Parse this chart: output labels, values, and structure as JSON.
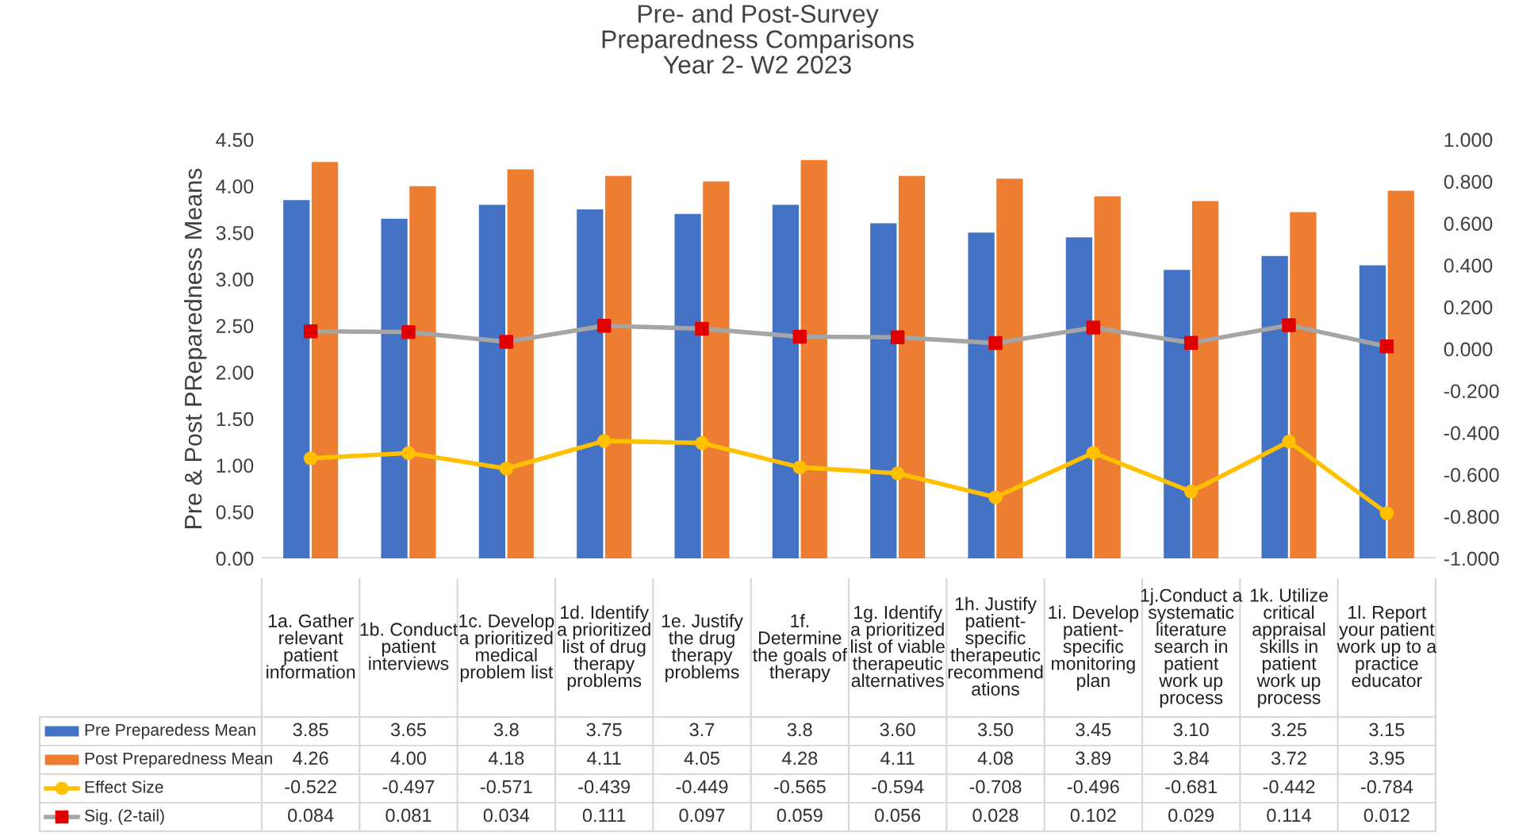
{
  "chart_data": {
    "type": "bar",
    "title": "Pre- and Post-Survey\nPreparedness Comparisons\nYear 2- W2 2023",
    "ylabel": "Pre & Post PReparedness Means",
    "categories": [
      "1a. Gather\nrelevant\npatient\ninformation",
      "1b. Conduct\npatient\ninterviews",
      "1c. Develop\na prioritized\nmedical\nproblem list",
      "1d. Identify\na prioritized\nlist of drug\ntherapy\nproblems",
      "1e. Justify\nthe drug\ntherapy\nproblems",
      "1f.\nDetermine\nthe goals of\ntherapy",
      "1g. Identify\na prioritized\nlist of viable\ntherapeutic\nalternatives",
      "1h. Justify\npatient-\nspecific\ntherapeutic\nrecommend\nations",
      "1i. Develop\npatient-\nspecific\nmonitoring\nplan",
      "1j.Conduct a\nsystematic\nliterature\nsearch in\npatient\nwork up\nprocess",
      "1k. Utilize\ncritical\nappraisal\nskills in\npatient\nwork up\nprocess",
      "1l. Report\nyour patient\nwork up to a\npractice\neducator"
    ],
    "series": [
      {
        "name": "Pre Preparedess Mean",
        "color": "#4472c4",
        "values": [
          3.85,
          3.65,
          3.8,
          3.75,
          3.7,
          3.8,
          3.6,
          3.5,
          3.45,
          3.1,
          3.25,
          3.15
        ],
        "value_labels": [
          "3.85",
          "3.65",
          "3.8",
          "3.75",
          "3.7",
          "3.8",
          "3.60",
          "3.50",
          "3.45",
          "3.10",
          "3.25",
          "3.15"
        ]
      },
      {
        "name": "Post Preparedness Mean",
        "color": "#ed7d31",
        "values": [
          4.26,
          4.0,
          4.18,
          4.11,
          4.05,
          4.28,
          4.11,
          4.08,
          3.89,
          3.84,
          3.72,
          3.95
        ],
        "value_labels": [
          "4.26",
          "4.00",
          "4.18",
          "4.11",
          "4.05",
          "4.28",
          "4.11",
          "4.08",
          "3.89",
          "3.84",
          "3.72",
          "3.95"
        ]
      },
      {
        "name": "Effect Size",
        "color": "#ffc000",
        "type": "line",
        "axis": "y2",
        "marker": "circle",
        "values": [
          -0.522,
          -0.497,
          -0.571,
          -0.439,
          -0.449,
          -0.565,
          -0.594,
          -0.708,
          -0.496,
          -0.681,
          -0.442,
          -0.784
        ],
        "value_labels": [
          "-0.522",
          "-0.497",
          "-0.571",
          "-0.439",
          "-0.449",
          "-0.565",
          "-0.594",
          "-0.708",
          "-0.496",
          "-0.681",
          "-0.442",
          "-0.784"
        ]
      },
      {
        "name": "Sig. (2-tail)",
        "color": "#a5a5a5",
        "type": "line",
        "axis": "y2",
        "marker": "square",
        "colors": [
          "#e00000",
          "#e00000",
          "#e00000",
          "#e00000",
          "#e00000",
          "#e00000",
          "#e00000",
          "#e00000",
          "#e00000",
          "#e00000",
          "#e00000",
          "#e00000"
        ],
        "values": [
          0.084,
          0.081,
          0.034,
          0.111,
          0.097,
          0.059,
          0.056,
          0.028,
          0.102,
          0.029,
          0.114,
          0.012
        ],
        "value_labels": [
          "0.084",
          "0.081",
          "0.034",
          "0.111",
          "0.097",
          "0.059",
          "0.056",
          "0.028",
          "0.102",
          "0.029",
          "0.114",
          "0.012"
        ]
      }
    ],
    "ylim": [
      0,
      4.5
    ],
    "yticks": [
      {
        "value": 0,
        "label": "0.00"
      },
      {
        "value": 0.5,
        "label": "0.50"
      },
      {
        "value": 1,
        "label": "1.00"
      },
      {
        "value": 1.5,
        "label": "1.50"
      },
      {
        "value": 2,
        "label": "2.00"
      },
      {
        "value": 2.5,
        "label": "2.50"
      },
      {
        "value": 3,
        "label": "3.00"
      },
      {
        "value": 3.5,
        "label": "3.50"
      },
      {
        "value": 4,
        "label": "4.00"
      },
      {
        "value": 4.5,
        "label": "4.50"
      }
    ],
    "y2lim": [
      -1,
      1
    ],
    "y2ticks": [
      {
        "value": -1,
        "label": "-1.000"
      },
      {
        "value": -0.8,
        "label": "-0.800"
      },
      {
        "value": -0.6,
        "label": "-0.600"
      },
      {
        "value": -0.4,
        "label": "-0.400"
      },
      {
        "value": -0.2,
        "label": "-0.200"
      },
      {
        "value": 0,
        "label": "0.000"
      },
      {
        "value": 0.2,
        "label": "0.200"
      },
      {
        "value": 0.4,
        "label": "0.400"
      },
      {
        "value": 0.6,
        "label": "0.600"
      },
      {
        "value": 0.8,
        "label": "0.800"
      },
      {
        "value": 1,
        "label": "1.000"
      }
    ],
    "grid": false,
    "legend": "bottom"
  }
}
